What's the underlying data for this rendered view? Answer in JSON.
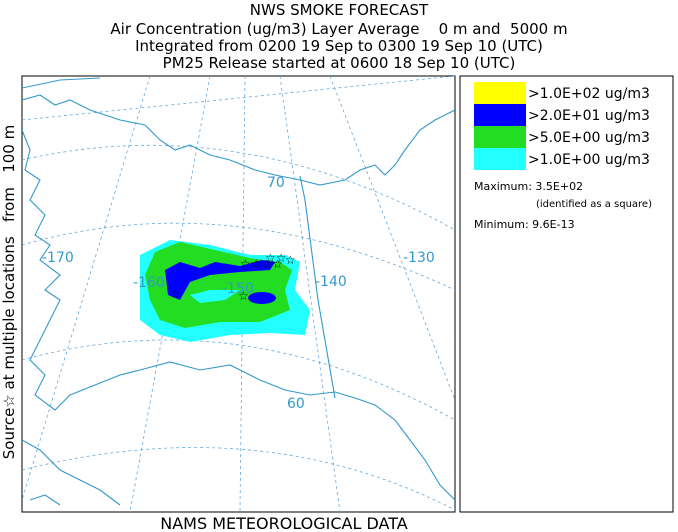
{
  "header": {
    "title": "NWS SMOKE FORECAST",
    "lines": [
      "Air Concentration (ug/m3) Layer Average    0 m and  5000 m",
      "Integrated from 0200 19 Sep to 0300 19 Sep 10 (UTC)",
      "PM25 Release started at 0600 18 Sep 10 (UTC)"
    ]
  },
  "side_label": "Source☆ at multiple locations   from   100 m",
  "footer": "NAMS METEOROLOGICAL DATA",
  "map": {
    "labels": [
      "-170",
      "-160",
      "-150",
      "-140",
      "-130",
      "70",
      "60"
    ]
  },
  "legend": {
    "items": [
      {
        "label": ">1.0E+02 ug/m3",
        "color": "#ffff00"
      },
      {
        "label": ">2.0E+01 ug/m3",
        "color": "#0000ff"
      },
      {
        "label": ">5.0E+00 ug/m3",
        "color": "#22dd22"
      },
      {
        "label": ">1.0E+00 ug/m3",
        "color": "#22ffff"
      }
    ],
    "maximum": "Maximum: 3.5E+02",
    "maximum_note": "(identified as a square)",
    "minimum": "Minimum: 9.6E-13"
  }
}
